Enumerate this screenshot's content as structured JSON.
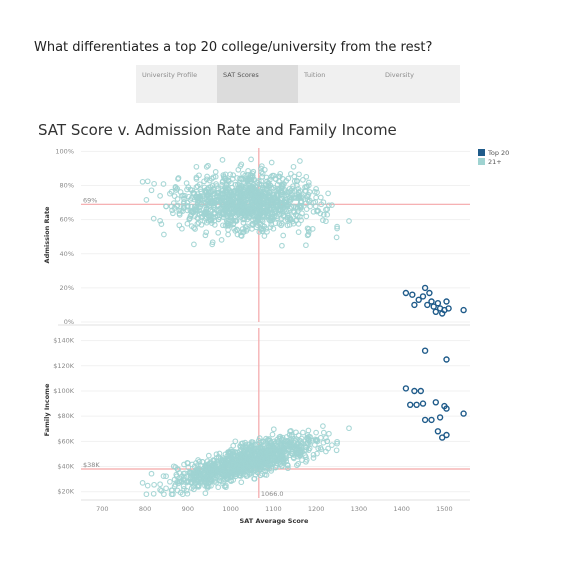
{
  "page": {
    "question": "What differentiates a top 20 college/university from the rest?",
    "tabs": [
      {
        "label": "University Profile",
        "active": false
      },
      {
        "label": "SAT Scores",
        "active": true
      },
      {
        "label": "Tuition",
        "active": false
      },
      {
        "label": "Diversity",
        "active": false
      }
    ]
  },
  "colors": {
    "top20": "#1f5b8a",
    "rest": "#9fd3d1",
    "reference_line": "#f4a6a8"
  },
  "chart_data": [
    {
      "type": "scatter",
      "title": "SAT Score v. Admission Rate and Family Income",
      "xlabel": "SAT Average Score",
      "ylabel": "Admission Rate",
      "xlim": [
        650,
        1560
      ],
      "ylim": [
        0,
        1.02
      ],
      "xticks": [
        "700",
        "800",
        "900",
        "1000",
        "1100",
        "1200",
        "1300",
        "1400",
        "1500"
      ],
      "yticks": [
        {
          "v": 1.0,
          "label": "100%"
        },
        {
          "v": 0.8,
          "label": "80%"
        },
        {
          "v": 0.6,
          "label": "60%"
        },
        {
          "v": 0.4,
          "label": "40%"
        },
        {
          "v": 0.2,
          "label": "20%"
        },
        {
          "v": 0.0,
          "label": "0%"
        }
      ],
      "reference": {
        "x": 1066,
        "x_label": "",
        "y": 0.69,
        "y_label": "69%"
      },
      "legend": [
        "Top 20",
        "21+"
      ],
      "series": [
        {
          "name": "Top 20",
          "points": [
            [
              1410,
              0.17
            ],
            [
              1425,
              0.16
            ],
            [
              1440,
              0.13
            ],
            [
              1450,
              0.15
            ],
            [
              1455,
              0.2
            ],
            [
              1465,
              0.17
            ],
            [
              1470,
              0.12
            ],
            [
              1475,
              0.09
            ],
            [
              1480,
              0.06
            ],
            [
              1485,
              0.11
            ],
            [
              1490,
              0.08
            ],
            [
              1495,
              0.05
            ],
            [
              1500,
              0.07
            ],
            [
              1505,
              0.12
            ],
            [
              1510,
              0.08
            ],
            [
              1545,
              0.07
            ],
            [
              1430,
              0.1
            ],
            [
              1460,
              0.1
            ]
          ]
        },
        {
          "name": "21+",
          "points": []
        }
      ]
    },
    {
      "type": "scatter",
      "xlabel": "SAT Average Score",
      "ylabel": "Family Income",
      "xlim": [
        650,
        1560
      ],
      "ylim": [
        15000,
        150000
      ],
      "yticks": [
        {
          "v": 140000,
          "label": "$140K"
        },
        {
          "v": 120000,
          "label": "$120K"
        },
        {
          "v": 100000,
          "label": "$100K"
        },
        {
          "v": 80000,
          "label": "$80K"
        },
        {
          "v": 60000,
          "label": "$60K"
        },
        {
          "v": 40000,
          "label": "$40K"
        },
        {
          "v": 20000,
          "label": "$20K"
        }
      ],
      "reference": {
        "x": 1066,
        "x_label": "1066.0",
        "y": 38000,
        "y_label": "$38K"
      },
      "series": [
        {
          "name": "Top 20",
          "points": [
            [
              1455,
              132000
            ],
            [
              1505,
              125000
            ],
            [
              1410,
              102000
            ],
            [
              1430,
              100000
            ],
            [
              1445,
              100000
            ],
            [
              1420,
              89000
            ],
            [
              1435,
              89000
            ],
            [
              1450,
              90000
            ],
            [
              1480,
              91000
            ],
            [
              1500,
              88000
            ],
            [
              1505,
              86000
            ],
            [
              1545,
              82000
            ],
            [
              1455,
              77000
            ],
            [
              1470,
              77000
            ],
            [
              1490,
              79000
            ],
            [
              1485,
              68000
            ],
            [
              1495,
              63000
            ],
            [
              1505,
              65000
            ]
          ]
        },
        {
          "name": "21+",
          "points": []
        }
      ]
    }
  ]
}
